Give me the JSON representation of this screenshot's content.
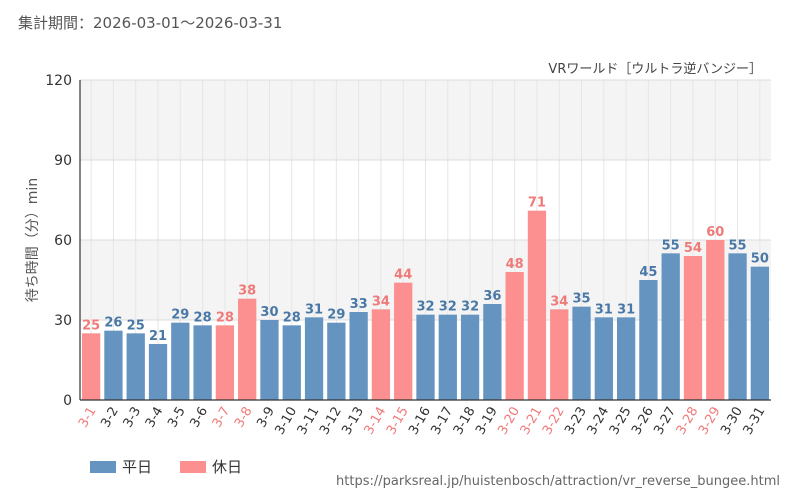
{
  "header": {
    "period_label": "集計期間：",
    "period_value": "2026-03-01～2026-03-31"
  },
  "footer": {
    "url": "https://parksreal.jp/huistenbosch/attraction/vr_reverse_bungee.html"
  },
  "colors": {
    "weekday": "#6594c0",
    "holiday": "#fc8f8f",
    "weekday_text": "#4a78a6",
    "holiday_text": "#f07a7a"
  },
  "chart_data": {
    "type": "bar",
    "title": "VRワールド［ウルトラ逆バンジー］",
    "xlabel": "",
    "ylabel": "待ち時間（分）min",
    "ylim": [
      0,
      120
    ],
    "yticks": [
      0,
      30,
      60,
      90,
      120
    ],
    "categories": [
      "3-1",
      "3-2",
      "3-3",
      "3-4",
      "3-5",
      "3-6",
      "3-7",
      "3-8",
      "3-9",
      "3-10",
      "3-11",
      "3-12",
      "3-13",
      "3-14",
      "3-15",
      "3-16",
      "3-17",
      "3-18",
      "3-19",
      "3-20",
      "3-21",
      "3-22",
      "3-23",
      "3-24",
      "3-25",
      "3-26",
      "3-27",
      "3-28",
      "3-29",
      "3-30",
      "3-31"
    ],
    "values": [
      25,
      26,
      25,
      21,
      29,
      28,
      28,
      38,
      30,
      28,
      31,
      29,
      33,
      34,
      44,
      32,
      32,
      32,
      36,
      48,
      71,
      34,
      35,
      31,
      31,
      45,
      55,
      54,
      60,
      55,
      50
    ],
    "day_type": [
      "holiday",
      "weekday",
      "weekday",
      "weekday",
      "weekday",
      "weekday",
      "holiday",
      "holiday",
      "weekday",
      "weekday",
      "weekday",
      "weekday",
      "weekday",
      "holiday",
      "holiday",
      "weekday",
      "weekday",
      "weekday",
      "weekday",
      "holiday",
      "holiday",
      "holiday",
      "weekday",
      "weekday",
      "weekday",
      "weekday",
      "weekday",
      "holiday",
      "holiday",
      "weekday",
      "weekday"
    ],
    "series": [
      {
        "name": "平日",
        "key": "weekday"
      },
      {
        "name": "休日",
        "key": "holiday"
      }
    ],
    "grid": true,
    "legend_position": "bottom-left"
  }
}
